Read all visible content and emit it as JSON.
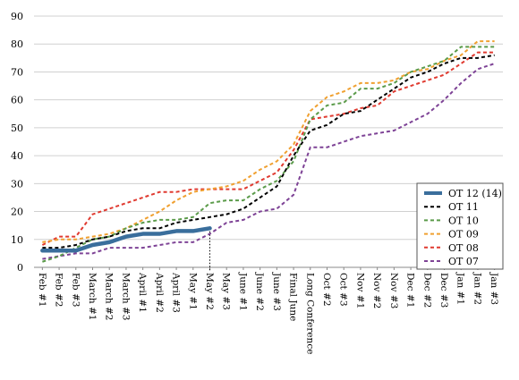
{
  "chart_data": {
    "type": "line",
    "title": "",
    "xlabel": "",
    "ylabel": "",
    "ylim": [
      0,
      90
    ],
    "yticks": [
      0,
      10,
      20,
      30,
      40,
      50,
      60,
      70,
      80,
      90
    ],
    "grid": "horizontal",
    "legend_position": "bottom-right",
    "marker_line_category": "May #2",
    "categories": [
      "Feb #1",
      "Feb #2",
      "Feb #3",
      "March #1",
      "March #2",
      "March #3",
      "April #1",
      "April #2",
      "April #3",
      "May #1",
      "May #2",
      "May #3",
      "June #1",
      "June #2",
      "June #3",
      "Final June",
      "Long Conference",
      "Oct #2",
      "Oct #3",
      "Nov #1",
      "Nov #2",
      "Nov #3",
      "Dec #1",
      "Dec #2",
      "Dec #3",
      "Jan #1",
      "Jan #2",
      "Jan #3"
    ],
    "series": [
      {
        "name": "OT 12 (14)",
        "color": "#3a6e9c",
        "style": "solid-thick",
        "values": [
          6,
          6,
          6,
          8,
          9,
          11,
          12,
          12,
          13,
          13,
          14,
          null,
          null,
          null,
          null,
          null,
          null,
          null,
          null,
          null,
          null,
          null,
          null,
          null,
          null,
          null,
          null,
          null
        ]
      },
      {
        "name": "OT 11",
        "color": "#000000",
        "style": "dashed",
        "values": [
          7,
          7,
          8,
          10,
          11,
          13,
          14,
          14,
          16,
          17,
          18,
          19,
          21,
          25,
          29,
          40,
          49,
          51,
          55,
          56,
          60,
          64,
          68,
          70,
          73,
          75,
          75,
          76
        ]
      },
      {
        "name": "OT 10",
        "color": "#5b9b4a",
        "style": "dashed",
        "values": [
          2,
          4,
          7,
          10,
          11,
          14,
          16,
          17,
          17,
          18,
          23,
          24,
          24,
          28,
          31,
          38,
          53,
          58,
          59,
          64,
          64,
          66,
          70,
          72,
          74,
          79,
          79,
          79
        ]
      },
      {
        "name": "OT 09",
        "color": "#f0a030",
        "style": "dashed",
        "values": [
          9,
          10,
          10,
          11,
          12,
          14,
          17,
          20,
          24,
          27,
          28,
          29,
          31,
          35,
          38,
          44,
          56,
          61,
          63,
          66,
          66,
          67,
          70,
          71,
          74,
          76,
          81,
          81
        ]
      },
      {
        "name": "OT 08",
        "color": "#e03a30",
        "style": "dashed",
        "values": [
          8,
          11,
          11,
          19,
          21,
          23,
          25,
          27,
          27,
          28,
          28,
          28,
          28,
          31,
          34,
          42,
          53,
          54,
          55,
          57,
          58,
          63,
          65,
          67,
          69,
          73,
          77,
          77
        ]
      },
      {
        "name": "OT 07",
        "color": "#7e4396",
        "style": "dashed",
        "values": [
          3,
          4,
          5,
          5,
          7,
          7,
          7,
          8,
          9,
          9,
          12,
          16,
          17,
          20,
          21,
          26,
          43,
          43,
          45,
          47,
          48,
          49,
          52,
          55,
          60,
          66,
          71,
          73
        ]
      }
    ]
  }
}
